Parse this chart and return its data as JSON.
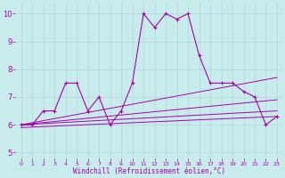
{
  "background_color": "#c8ecec",
  "grid_color": "#b0d8d8",
  "line_color": "#aa00aa",
  "xlabel": "Windchill (Refroidissement éolien,°C)",
  "xlim": [
    -0.5,
    23.5
  ],
  "ylim": [
    4.8,
    10.4
  ],
  "yticks": [
    5,
    6,
    7,
    8,
    9,
    10
  ],
  "xticks": [
    0,
    1,
    2,
    3,
    4,
    5,
    6,
    7,
    8,
    9,
    10,
    11,
    12,
    13,
    14,
    15,
    16,
    17,
    18,
    19,
    20,
    21,
    22,
    23
  ],
  "main_x": [
    0,
    1,
    2,
    3,
    4,
    5,
    6,
    7,
    8,
    9,
    10,
    11,
    12,
    13,
    14,
    15,
    16,
    17,
    18,
    19,
    20,
    21,
    22,
    23
  ],
  "main_y": [
    6.0,
    6.0,
    6.5,
    6.5,
    7.5,
    7.5,
    6.5,
    7.0,
    6.0,
    6.5,
    7.5,
    10.0,
    9.5,
    10.0,
    9.8,
    10.0,
    8.5,
    7.5,
    7.5,
    7.5,
    7.2,
    7.0,
    6.0,
    6.3
  ],
  "trend_lines": [
    {
      "x": [
        0,
        23
      ],
      "y": [
        6.0,
        7.7
      ]
    },
    {
      "x": [
        0,
        23
      ],
      "y": [
        6.0,
        6.9
      ]
    },
    {
      "x": [
        0,
        23
      ],
      "y": [
        6.0,
        6.5
      ]
    },
    {
      "x": [
        0,
        23
      ],
      "y": [
        5.9,
        6.3
      ]
    }
  ],
  "xlabel_fontsize": 5.5,
  "tick_fontsize_x": 4.5,
  "tick_fontsize_y": 6
}
